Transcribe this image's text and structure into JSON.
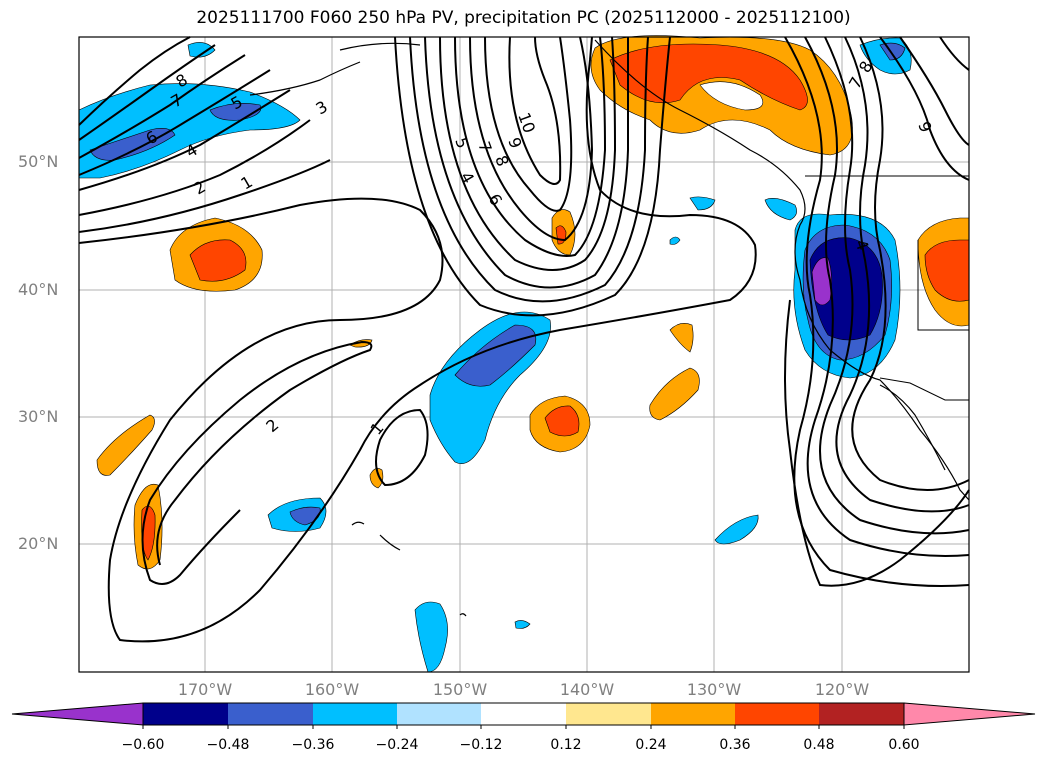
{
  "title": "2025111700 F060 250 hPa PV, precipitation PC (2025112000 - 2025112100)",
  "axes": {
    "lat_labels": [
      "50°N",
      "40°N",
      "30°N",
      "20°N"
    ],
    "lon_labels": [
      "170°W",
      "160°W",
      "150°W",
      "140°W",
      "130°W",
      "120°W"
    ]
  },
  "contour_labels": [
    "8",
    "7",
    "5",
    "3",
    "6",
    "4",
    "2",
    "1",
    "10",
    "9",
    "8",
    "7",
    "5",
    "4",
    "6",
    "8",
    "7",
    "9",
    "2",
    "1",
    "4"
  ],
  "colorbar": {
    "ticks": [
      "−0.60",
      "−0.48",
      "−0.36",
      "−0.24",
      "−0.12",
      "0.12",
      "0.24",
      "0.36",
      "0.48",
      "0.60"
    ],
    "colors": [
      "#9932CC",
      "#00008B",
      "#3A5FCD",
      "#00BFFF",
      "#B0E2FF",
      "#FFFFFF",
      "#FFE78F",
      "#FFA500",
      "#FF4500",
      "#B22222",
      "#FF88AA"
    ]
  }
}
